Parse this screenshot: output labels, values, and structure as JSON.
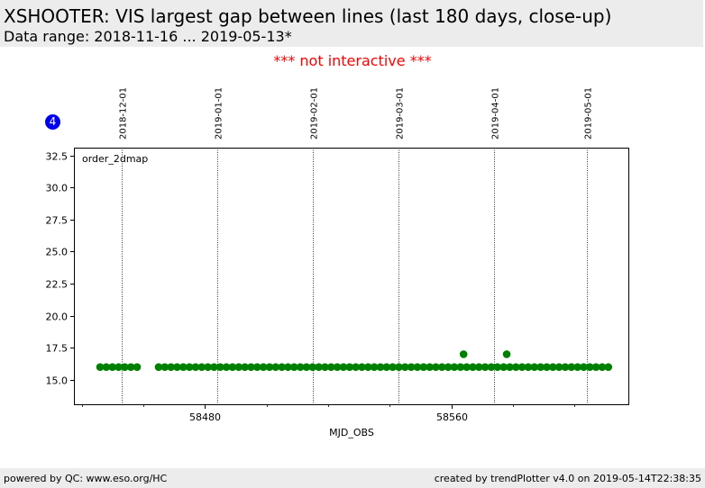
{
  "header": {
    "title": "XSHOOTER: VIS largest gap between lines (last 180 days, close-up)",
    "subtitle": "Data range: 2018-11-16 ... 2019-05-13*"
  },
  "notice": "*** not interactive ***",
  "badge": "4",
  "footer": {
    "left": "powered by QC: www.eso.org/HC",
    "right": "created by trendPlotter v4.0 on 2019-05-14T22:38:35"
  },
  "colors": {
    "marker": "#008000",
    "badge": "#0000ee",
    "notice": "#ff0000"
  },
  "chart_data": {
    "type": "scatter",
    "xlabel": "MJD_OBS",
    "ylabel": "",
    "xlim": [
      58437.5,
      58617.5
    ],
    "ylim": [
      13.1,
      33.1
    ],
    "xticks": [
      58480,
      58560
    ],
    "yticks": [
      15.0,
      17.5,
      20.0,
      22.5,
      25.0,
      27.5,
      30.0,
      32.5
    ],
    "ytick_labels": [
      "15.0",
      "17.5",
      "20.0",
      "22.5",
      "25.0",
      "27.5",
      "30.0",
      "32.5"
    ],
    "date_lines": [
      {
        "label": "2018-12-01",
        "mjd": 58453
      },
      {
        "label": "2019-01-01",
        "mjd": 58484
      },
      {
        "label": "2019-02-01",
        "mjd": 58515
      },
      {
        "label": "2019-03-01",
        "mjd": 58543
      },
      {
        "label": "2019-04-01",
        "mjd": 58574
      },
      {
        "label": "2019-05-01",
        "mjd": 58604
      }
    ],
    "series": [
      {
        "name": "order_2dmap",
        "x": [
          58446,
          58448,
          58450,
          58452,
          58454,
          58456,
          58458,
          58465,
          58467,
          58469,
          58471,
          58473,
          58475,
          58477,
          58479,
          58481,
          58483,
          58485,
          58487,
          58489,
          58491,
          58493,
          58495,
          58497,
          58499,
          58501,
          58503,
          58505,
          58507,
          58509,
          58511,
          58513,
          58515,
          58517,
          58519,
          58521,
          58523,
          58525,
          58527,
          58529,
          58531,
          58533,
          58535,
          58537,
          58539,
          58541,
          58543,
          58545,
          58547,
          58549,
          58551,
          58553,
          58555,
          58557,
          58559,
          58561,
          58563,
          58565,
          58567,
          58569,
          58571,
          58573,
          58575,
          58577,
          58579,
          58581,
          58583,
          58585,
          58587,
          58589,
          58591,
          58593,
          58595,
          58597,
          58599,
          58601,
          58603,
          58605,
          58607,
          58609,
          58611,
          58564,
          58578
        ],
        "y": [
          16.0,
          16.0,
          16.0,
          16.0,
          16.0,
          16.0,
          16.0,
          16.0,
          16.0,
          16.0,
          16.0,
          16.0,
          16.0,
          16.0,
          16.0,
          16.0,
          16.0,
          16.0,
          16.0,
          16.0,
          16.0,
          16.0,
          16.0,
          16.0,
          16.0,
          16.0,
          16.0,
          16.0,
          16.0,
          16.0,
          16.0,
          16.0,
          16.0,
          16.0,
          16.0,
          16.0,
          16.0,
          16.0,
          16.0,
          16.0,
          16.0,
          16.0,
          16.0,
          16.0,
          16.0,
          16.0,
          16.0,
          16.0,
          16.0,
          16.0,
          16.0,
          16.0,
          16.0,
          16.0,
          16.0,
          16.0,
          16.0,
          16.0,
          16.0,
          16.0,
          16.0,
          16.0,
          16.0,
          16.0,
          16.0,
          16.0,
          16.0,
          16.0,
          16.0,
          16.0,
          16.0,
          16.0,
          16.0,
          16.0,
          16.0,
          16.0,
          16.0,
          16.0,
          16.0,
          16.0,
          16.0,
          17.0,
          17.0
        ]
      }
    ],
    "grid": false,
    "legend": "top-left inside plot"
  }
}
